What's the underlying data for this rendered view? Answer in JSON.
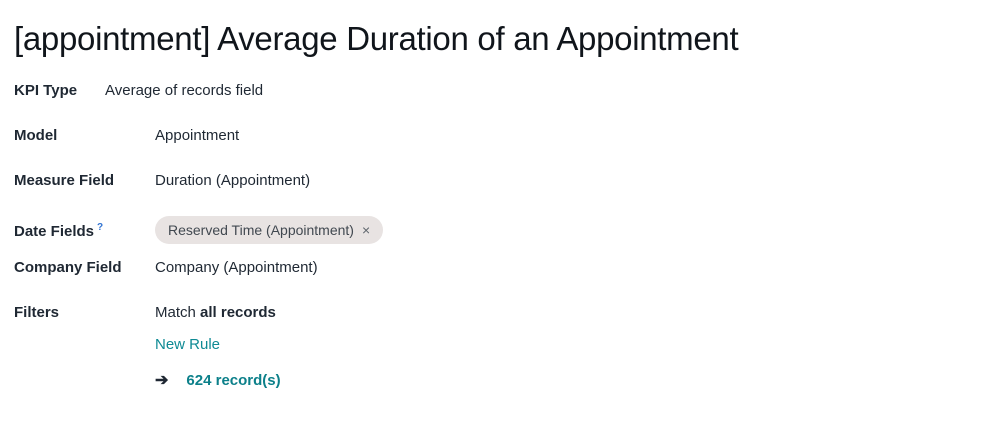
{
  "page": {
    "title": "[appointment] Average Duration of an Appointment"
  },
  "fields": {
    "kpi_type": {
      "label": "KPI Type",
      "value": "Average of records field"
    },
    "model": {
      "label": "Model",
      "value": "Appointment"
    },
    "measure_field": {
      "label": "Measure Field",
      "value": "Duration (Appointment)"
    },
    "date_fields": {
      "label": "Date Fields",
      "help_marker": "?",
      "tag": {
        "text": "Reserved Time (Appointment)",
        "remove_icon": "×"
      }
    },
    "company_field": {
      "label": "Company Field",
      "value": "Company (Appointment)"
    },
    "filters": {
      "label": "Filters",
      "match_prefix": "Match ",
      "match_bold": "all records",
      "new_rule_label": "New Rule",
      "arrow_icon": "➔",
      "record_count": "624 record(s)"
    }
  },
  "colors": {
    "text_dark": "#1f2833",
    "title": "#10151b",
    "link_teal": "#0e8a94",
    "count_teal": "#0c808a",
    "help_blue": "#3173d2",
    "tag_background": "#e8e3e2",
    "tag_text": "#414850",
    "tag_close": "#5f666d"
  }
}
